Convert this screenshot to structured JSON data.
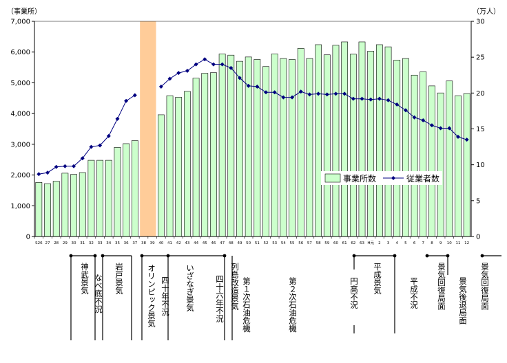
{
  "chart_data": {
    "type": "bar+line",
    "y_left_unit": "（事業所）",
    "y_right_unit": "（万人）",
    "y_left_ticks": [
      "0",
      "1,000",
      "2,000",
      "3,000",
      "4,000",
      "5,000",
      "6,000",
      "7,000"
    ],
    "y_right_ticks": [
      "0",
      "5",
      "10",
      "15",
      "20",
      "25",
      "30"
    ],
    "ylim_left": [
      0,
      7000
    ],
    "ylim_right": [
      0,
      30
    ],
    "grid": false,
    "legend_position": "right-middle",
    "categories": [
      "S26",
      "27",
      "28",
      "29",
      "30",
      "31",
      "32",
      "33",
      "34",
      "35",
      "36",
      "37",
      "38",
      "39",
      "40",
      "41",
      "42",
      "43",
      "44",
      "45",
      "46",
      "47",
      "48",
      "49",
      "50",
      "51",
      "52",
      "53",
      "54",
      "55",
      "56",
      "57",
      "58",
      "59",
      "60",
      "61",
      "62",
      "63",
      "H元",
      "2",
      "3",
      "4",
      "5",
      "6",
      "7",
      "8",
      "9",
      "10",
      "11",
      "12"
    ],
    "series": [
      {
        "name": "事業所数",
        "type": "bar",
        "color": "#ccffcc",
        "values": [
          1760,
          1720,
          1800,
          2060,
          2020,
          2080,
          2480,
          2480,
          2480,
          2900,
          3020,
          3120,
          null,
          null,
          3960,
          4580,
          4530,
          4720,
          5150,
          5310,
          5330,
          5940,
          5900,
          5700,
          5840,
          5760,
          5530,
          5940,
          5790,
          5760,
          6120,
          5790,
          6240,
          5910,
          6220,
          6330,
          5930,
          6330,
          6030,
          6240,
          6170,
          5740,
          5790,
          5250,
          5360,
          4900,
          4670,
          5060,
          4580,
          4650
        ]
      },
      {
        "name": "従業者数",
        "type": "line",
        "color": "#000080",
        "values": [
          8.7,
          8.9,
          9.7,
          9.8,
          9.8,
          10.9,
          12.5,
          12.7,
          14.0,
          16.4,
          18.9,
          19.7,
          null,
          null,
          20.9,
          22.0,
          22.8,
          23.1,
          24.0,
          24.7,
          24.0,
          24.0,
          23.5,
          22.1,
          21.0,
          20.9,
          20.1,
          20.1,
          19.4,
          19.4,
          20.2,
          19.8,
          19.9,
          19.8,
          19.9,
          19.9,
          19.2,
          19.2,
          19.1,
          19.2,
          19.0,
          18.4,
          17.6,
          16.6,
          16.2,
          15.5,
          15.1,
          15.1,
          13.9,
          13.5
        ]
      }
    ],
    "highlight_categories": [
      "38",
      "39"
    ],
    "highlight_color": "#ffcc99",
    "era_labels": [
      {
        "text": "神武景気",
        "from": "30",
        "to": "32"
      },
      {
        "text": "なべ底不況",
        "from": "32",
        "to": "33"
      },
      {
        "text": "岩戸景気",
        "from": "33",
        "to": "37"
      },
      {
        "text": "オリンピック景気",
        "from": "37",
        "to": "40"
      },
      {
        "text": "四十年不況",
        "from": "40",
        "to": "41"
      },
      {
        "text": "いざなぎ景気",
        "from": "41",
        "to": "45"
      },
      {
        "text": "四十六年不況",
        "from": "45",
        "to": "46"
      },
      {
        "text": "列島改造景気",
        "from": "46",
        "to": "48"
      },
      {
        "text": "第１次石油危機",
        "from": "48",
        "to": ""
      },
      {
        "text": "第２次石油危機",
        "from": "",
        "to": ""
      },
      {
        "text": "円高不況",
        "from": "60",
        "to": ""
      },
      {
        "text": "平成景気",
        "from": "61",
        "to": "2"
      },
      {
        "text": "平成不況",
        "from": "",
        "to": ""
      },
      {
        "text": "景気回復局面",
        "from": "6",
        "to": "8"
      },
      {
        "text": "景気後退局面",
        "from": "",
        "to": ""
      },
      {
        "text": "景気回復局面",
        "from": "11",
        "to": ""
      }
    ]
  }
}
